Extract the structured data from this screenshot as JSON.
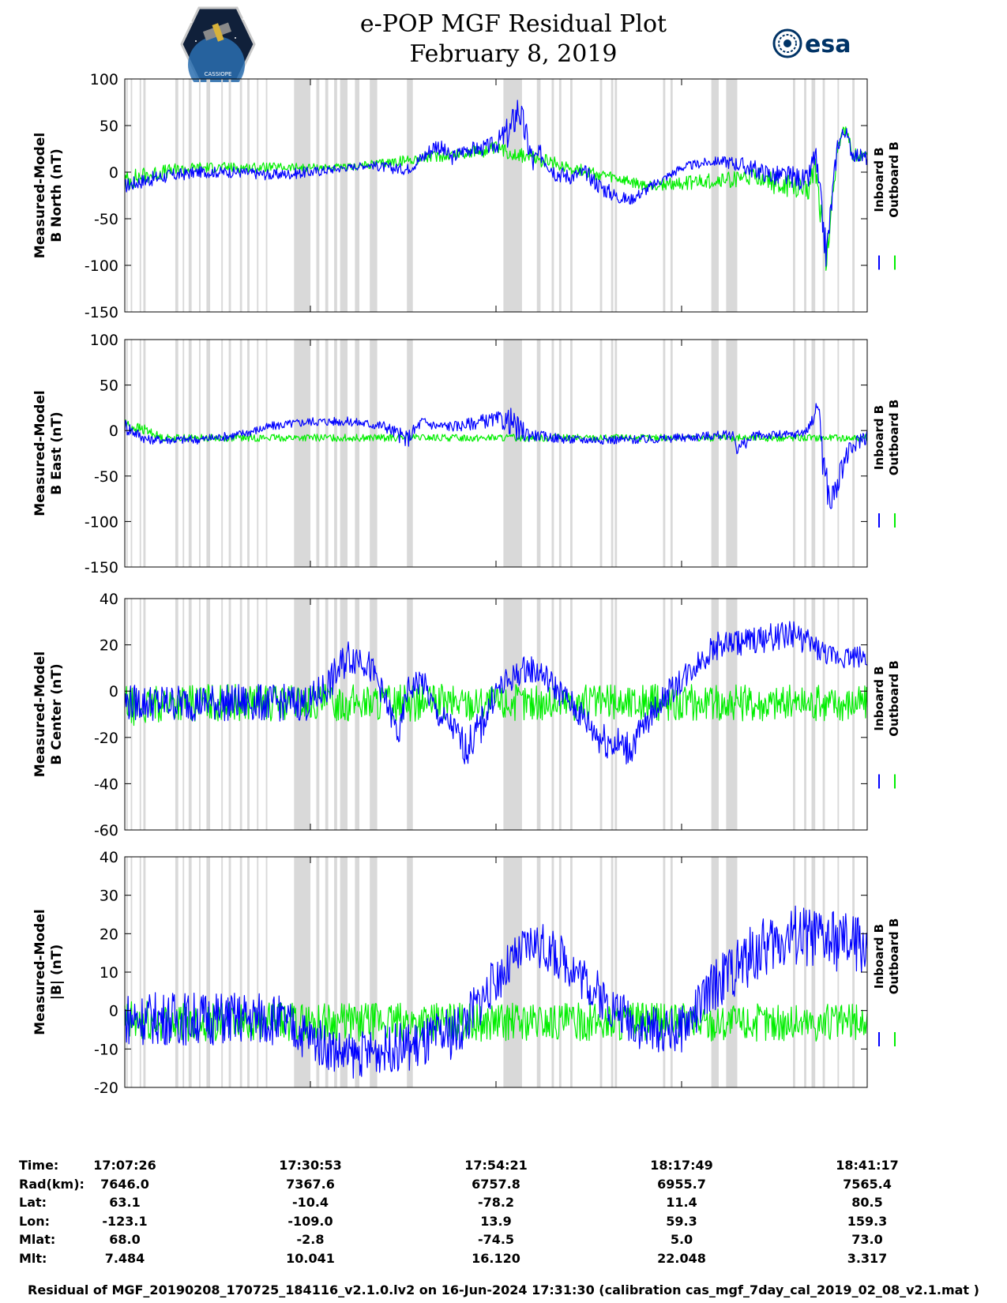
{
  "header": {
    "title_line1": "e-POP MGF Residual Plot",
    "title_line2": "February 8, 2019",
    "logo_left": "CASSIOPE",
    "logo_right": "esa"
  },
  "legend": {
    "inboard": "Inboard B",
    "outboard": "Outboard B",
    "inboard_color": "#0000ff",
    "outboard_color": "#00ee00"
  },
  "colors": {
    "gap_shade": "#d9d9d9",
    "inboard": "#0000ff",
    "outboard": "#00ee00"
  },
  "chart_data": [
    {
      "type": "line",
      "ylabel": [
        "Measured-Model",
        "B North (nT)"
      ],
      "ylim": [
        -150,
        100
      ],
      "yticks": [
        100,
        50,
        0,
        -50,
        -100,
        -150
      ],
      "series": [
        {
          "name": "Inboard B",
          "x": [
            0,
            0.02,
            0.05,
            0.1,
            0.15,
            0.2,
            0.25,
            0.3,
            0.33,
            0.35,
            0.38,
            0.4,
            0.42,
            0.44,
            0.46,
            0.48,
            0.5,
            0.52,
            0.53,
            0.55,
            0.56,
            0.58,
            0.6,
            0.62,
            0.64,
            0.66,
            0.68,
            0.7,
            0.72,
            0.75,
            0.78,
            0.8,
            0.82,
            0.84,
            0.86,
            0.88,
            0.9,
            0.92,
            0.93,
            0.945,
            0.96,
            0.97,
            0.98,
            1.0
          ],
          "y": [
            -15,
            -10,
            -5,
            0,
            0,
            -3,
            0,
            5,
            8,
            5,
            3,
            15,
            30,
            15,
            25,
            25,
            30,
            45,
            70,
            10,
            20,
            0,
            -5,
            0,
            -15,
            -25,
            -30,
            -20,
            -10,
            5,
            10,
            12,
            10,
            5,
            0,
            -5,
            -5,
            -10,
            20,
            -90,
            30,
            45,
            20,
            15
          ],
          "amp": [
            8,
            8,
            8,
            6,
            6,
            6,
            6,
            4,
            4,
            6,
            6,
            8,
            10,
            8,
            8,
            8,
            10,
            20,
            20,
            15,
            10,
            10,
            8,
            8,
            10,
            8,
            6,
            6,
            5,
            5,
            5,
            5,
            8,
            10,
            10,
            12,
            12,
            12,
            15,
            20,
            10,
            8,
            8,
            8
          ]
        },
        {
          "name": "Outboard B",
          "x": [
            0,
            0.02,
            0.05,
            0.1,
            0.3,
            0.5,
            0.7,
            0.86,
            0.88,
            0.9,
            0.92,
            0.93,
            0.945,
            0.96,
            0.97,
            0.98,
            1.0
          ],
          "y": [
            -10,
            -5,
            0,
            5,
            5,
            25,
            -15,
            -5,
            -15,
            -15,
            -20,
            10,
            -95,
            30,
            45,
            20,
            15
          ],
          "amp": [
            12,
            10,
            8,
            6,
            4,
            8,
            6,
            10,
            12,
            12,
            12,
            15,
            20,
            10,
            8,
            8,
            8
          ]
        }
      ]
    },
    {
      "type": "line",
      "ylabel": [
        "Measured-Model",
        "B East (nT)"
      ],
      "ylim": [
        -150,
        100
      ],
      "yticks": [
        100,
        50,
        0,
        -50,
        -100,
        -150
      ],
      "series": [
        {
          "name": "Inboard B",
          "x": [
            0,
            0.01,
            0.03,
            0.1,
            0.15,
            0.2,
            0.25,
            0.3,
            0.35,
            0.38,
            0.4,
            0.42,
            0.45,
            0.48,
            0.5,
            0.52,
            0.53,
            0.55,
            0.6,
            0.65,
            0.7,
            0.75,
            0.8,
            0.82,
            0.825,
            0.85,
            0.9,
            0.92,
            0.935,
            0.94,
            0.95,
            0.96,
            0.97,
            0.98,
            0.99,
            1.0
          ],
          "y": [
            5,
            0,
            -10,
            -10,
            -5,
            5,
            10,
            10,
            5,
            -10,
            10,
            5,
            5,
            10,
            12,
            10,
            0,
            -5,
            -10,
            -10,
            -10,
            -8,
            -5,
            -5,
            -20,
            -5,
            -5,
            0,
            30,
            -30,
            -80,
            -60,
            -30,
            -20,
            -10,
            -5
          ],
          "amp": [
            10,
            8,
            5,
            5,
            5,
            5,
            5,
            5,
            6,
            10,
            6,
            6,
            6,
            8,
            8,
            15,
            15,
            6,
            5,
            5,
            5,
            5,
            5,
            5,
            8,
            5,
            5,
            5,
            10,
            20,
            20,
            15,
            12,
            10,
            10,
            10
          ]
        },
        {
          "name": "Outboard B",
          "x": [
            0,
            0.005,
            0.03,
            0.05,
            1.0
          ],
          "y": [
            10,
            5,
            0,
            -8,
            -8
          ],
          "amp": [
            8,
            6,
            6,
            4,
            4
          ]
        }
      ]
    },
    {
      "type": "line",
      "ylabel": [
        "Measured-Model",
        "B Center (nT)"
      ],
      "ylim": [
        -60,
        40
      ],
      "yticks": [
        40,
        20,
        0,
        -20,
        -40,
        -60
      ],
      "series": [
        {
          "name": "Inboard B",
          "x": [
            0,
            0.1,
            0.2,
            0.25,
            0.28,
            0.3,
            0.32,
            0.34,
            0.37,
            0.38,
            0.4,
            0.42,
            0.44,
            0.46,
            0.48,
            0.5,
            0.52,
            0.54,
            0.56,
            0.6,
            0.64,
            0.68,
            0.7,
            0.72,
            0.75,
            0.78,
            0.8,
            0.85,
            0.9,
            0.95,
            0.97,
            1.0
          ],
          "y": [
            -5,
            -5,
            -5,
            -5,
            5,
            15,
            15,
            5,
            -20,
            0,
            5,
            -10,
            -15,
            -25,
            -15,
            0,
            5,
            10,
            8,
            -5,
            -20,
            -25,
            -15,
            -5,
            5,
            15,
            20,
            22,
            25,
            15,
            15,
            15
          ],
          "amp": [
            8,
            8,
            8,
            8,
            8,
            8,
            8,
            6,
            6,
            6,
            6,
            6,
            6,
            8,
            8,
            6,
            6,
            6,
            6,
            6,
            8,
            8,
            6,
            6,
            6,
            6,
            6,
            6,
            6,
            5,
            5,
            5
          ]
        },
        {
          "name": "Outboard B",
          "x": [
            0,
            0.02,
            0.05,
            1.0
          ],
          "y": [
            -5,
            -8,
            -5,
            -5
          ],
          "amp": [
            8,
            8,
            8,
            8
          ]
        }
      ]
    },
    {
      "type": "line",
      "ylabel": [
        "Measured-Model",
        "|B| (nT)"
      ],
      "ylim": [
        -20,
        40
      ],
      "yticks": [
        40,
        30,
        20,
        10,
        0,
        -10,
        -20
      ],
      "series": [
        {
          "name": "Inboard B",
          "x": [
            0,
            0.2,
            0.25,
            0.3,
            0.35,
            0.4,
            0.45,
            0.5,
            0.55,
            0.6,
            0.65,
            0.7,
            0.75,
            0.8,
            0.85,
            0.9,
            0.95,
            1.0
          ],
          "y": [
            -2,
            -2,
            -7,
            -12,
            -10,
            -9,
            -5,
            8,
            18,
            12,
            2,
            -5,
            -5,
            8,
            15,
            20,
            18,
            17
          ],
          "amp": [
            7,
            7,
            6,
            6,
            6,
            7,
            7,
            6,
            6,
            6,
            6,
            6,
            6,
            7,
            8,
            8,
            8,
            8
          ]
        },
        {
          "name": "Outboard B",
          "x": [
            0,
            0.02,
            0.05,
            1.0
          ],
          "y": [
            -4,
            -3,
            -3,
            -3
          ],
          "amp": [
            7,
            6,
            5,
            5
          ]
        }
      ]
    }
  ],
  "gap_bands": [
    [
      0.002,
      0.004
    ],
    [
      0.008,
      0.01
    ],
    [
      0.02,
      0.022
    ],
    [
      0.025,
      0.028
    ],
    [
      0.068,
      0.072
    ],
    [
      0.078,
      0.08
    ],
    [
      0.086,
      0.09
    ],
    [
      0.1,
      0.102
    ],
    [
      0.11,
      0.115
    ],
    [
      0.13,
      0.132
    ],
    [
      0.14,
      0.143
    ],
    [
      0.155,
      0.158
    ],
    [
      0.165,
      0.168
    ],
    [
      0.178,
      0.18
    ],
    [
      0.19,
      0.192
    ],
    [
      0.228,
      0.25
    ],
    [
      0.258,
      0.262
    ],
    [
      0.27,
      0.274
    ],
    [
      0.282,
      0.286
    ],
    [
      0.29,
      0.3
    ],
    [
      0.31,
      0.316
    ],
    [
      0.33,
      0.34
    ],
    [
      0.38,
      0.388
    ],
    [
      0.51,
      0.535
    ],
    [
      0.555,
      0.56
    ],
    [
      0.575,
      0.578
    ],
    [
      0.585,
      0.588
    ],
    [
      0.6,
      0.603
    ],
    [
      0.64,
      0.643
    ],
    [
      0.655,
      0.658
    ],
    [
      0.66,
      0.663
    ],
    [
      0.725,
      0.728
    ],
    [
      0.735,
      0.738
    ],
    [
      0.79,
      0.8
    ],
    [
      0.81,
      0.825
    ],
    [
      0.9,
      0.903
    ],
    [
      0.915,
      0.918
    ],
    [
      0.925,
      0.93
    ],
    [
      0.94,
      0.943
    ],
    [
      0.96,
      0.962
    ],
    [
      0.98,
      0.983
    ]
  ],
  "footer": {
    "rows": [
      {
        "label": "Time:",
        "values": [
          "17:07:26",
          "17:30:53",
          "17:54:21",
          "18:17:49",
          "18:41:17"
        ]
      },
      {
        "label": "Rad(km):",
        "values": [
          "7646.0",
          "7367.6",
          "6757.8",
          "6955.7",
          "7565.4"
        ]
      },
      {
        "label": "Lat:",
        "values": [
          "63.1",
          "-10.4",
          "-78.2",
          "11.4",
          "80.5"
        ]
      },
      {
        "label": "Lon:",
        "values": [
          "-123.1",
          "-109.0",
          "13.9",
          "59.3",
          "159.3"
        ]
      },
      {
        "label": "Mlat:",
        "values": [
          "68.0",
          "-2.8",
          "-74.5",
          "5.0",
          "73.0"
        ]
      },
      {
        "label": "Mlt:",
        "values": [
          "7.484",
          "10.041",
          "16.120",
          "22.048",
          "3.317"
        ]
      }
    ],
    "note": "Residual of MGF_20190208_170725_184116_v2.1.0.lv2 on 16-Jun-2024 17:31:30 (calibration cas_mgf_7day_cal_2019_02_08_v2.1.mat )"
  }
}
